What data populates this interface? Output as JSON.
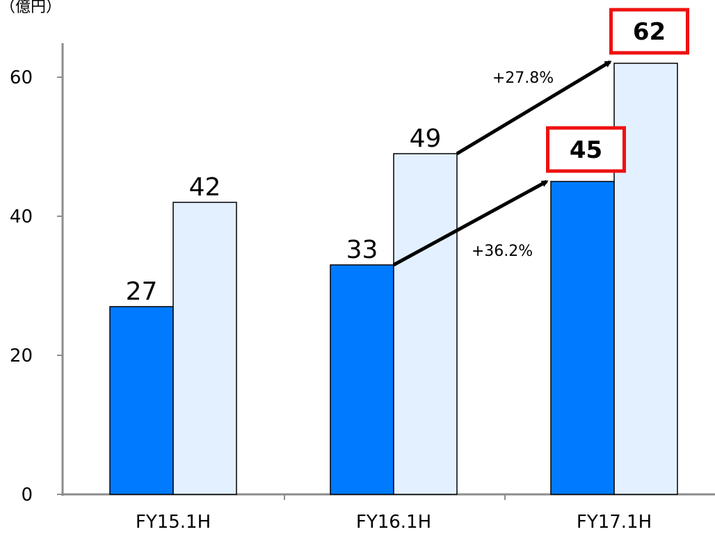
{
  "unit_label": "（億円）",
  "chart_data": {
    "type": "bar",
    "categories": [
      "FY15.1H",
      "FY16.1H",
      "FY17.1H"
    ],
    "series": [
      {
        "values": [
          27,
          33,
          45
        ],
        "color": "#007bff"
      },
      {
        "values": [
          42,
          49,
          62
        ],
        "color": "#e3f0ff"
      }
    ],
    "ylim": [
      0,
      65
    ],
    "yticks": [
      "0",
      "20",
      "40",
      "60"
    ],
    "ytick_values": [
      0,
      20,
      40,
      60
    ],
    "grid": false,
    "data_labels": {
      "series_0": [
        "27",
        "33",
        "45"
      ],
      "series_1": [
        "42",
        "49",
        "62"
      ]
    },
    "highlighted_labels": [
      "45",
      "62"
    ],
    "highlight_color": "#ee1111",
    "annotations": [
      {
        "text": "+27.8%",
        "from_value": 49,
        "to_value": 62,
        "series": 1
      },
      {
        "text": "+36.2%",
        "from_value": 33,
        "to_value": 45,
        "series": 0
      }
    ]
  }
}
